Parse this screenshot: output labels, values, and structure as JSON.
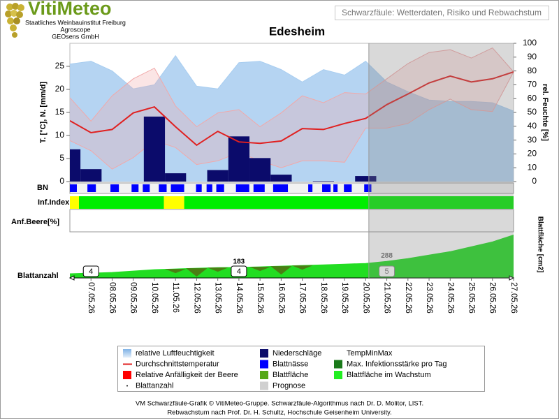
{
  "header": {
    "logo": "VitiMeteo",
    "org_lines": [
      "Staatliches Weinbauinstitut Freiburg",
      "Agroscope",
      "GEOsens GmbH"
    ],
    "subtitle": "Schwarzfäule: Wetterdaten, Risiko und Rebwachstum"
  },
  "chart_data": {
    "type": "weather-risk-combo",
    "title": "Edesheim",
    "categories": [
      null,
      "07.05.26",
      "08.05.26",
      "09.05.26",
      "10.05.26",
      "11.05.26",
      "12.05.26",
      "13.05.26",
      "14.05.26",
      "15.05.26",
      "16.05.26",
      "17.05.26",
      "18.05.26",
      "19.05.26",
      "20.05.26",
      "21.05.26",
      "22.05.26",
      "23.05.26",
      "24.05.26",
      "25.05.26",
      "26.05.26",
      "27.05.26"
    ],
    "ylabel": "T. [°C], N. [mm/d]",
    "y2label": "rel. Feuchte [%]",
    "ylim": [
      0,
      30
    ],
    "yticks": [
      0,
      5,
      10,
      15,
      20,
      25
    ],
    "y2lim": [
      0,
      100
    ],
    "y2ticks": [
      0,
      10,
      20,
      30,
      40,
      50,
      60,
      70,
      80,
      90,
      100
    ],
    "forecast_from": 14.15,
    "forecast_color": "#808080",
    "series": [
      {
        "kind": "area",
        "axis": "y2",
        "color": "#a8cdf0",
        "values": [
          85,
          87,
          80,
          67,
          70,
          91,
          69,
          67,
          86,
          87,
          81,
          72,
          81,
          77,
          87,
          72,
          65,
          59,
          58,
          58,
          57,
          51
        ]
      },
      {
        "kind": "band",
        "color": "#f2a8a8",
        "upper": [
          18.2,
          13.1,
          18.6,
          22.3,
          24.6,
          16.4,
          11.9,
          14.9,
          15.6,
          11.9,
          14.9,
          18.6,
          17.1,
          19.3,
          19.0,
          22.3,
          25.6,
          28.0,
          28.6,
          26.8,
          29.0,
          23.8
        ],
        "lower": [
          8.9,
          6.7,
          2.7,
          5.2,
          8.9,
          7.4,
          3.7,
          4.5,
          6.3,
          4.5,
          3.0,
          4.5,
          4.5,
          4.2,
          11.6,
          11.6,
          12.6,
          15.6,
          17.9,
          15.6,
          15.2,
          23.8
        ]
      },
      {
        "kind": "bar",
        "color": "#0b0b6b",
        "values": [
          7.0,
          2.7,
          0,
          0,
          14.1,
          1.8,
          0,
          2.5,
          9.8,
          5.1,
          1.5,
          0,
          0.1,
          0,
          1.2,
          null,
          null,
          null,
          null,
          null,
          null,
          null
        ]
      },
      {
        "kind": "line",
        "color": "#e02020",
        "values": [
          13.2,
          10.6,
          11.3,
          14.9,
          16.2,
          11.9,
          7.9,
          10.9,
          8.6,
          8.3,
          8.8,
          11.5,
          11.3,
          12.6,
          13.7,
          16.7,
          19.0,
          21.4,
          22.9,
          21.6,
          22.3,
          23.8
        ]
      }
    ],
    "bn": {
      "label": "BN",
      "color": "#0000ff",
      "intervals": [
        [
          0,
          0.33
        ],
        [
          0.83,
          1.23
        ],
        [
          1.92,
          2.32
        ],
        [
          2.92,
          3.25
        ],
        [
          3.45,
          3.78
        ],
        [
          4.21,
          4.58
        ],
        [
          4.78,
          5.41
        ],
        [
          5.97,
          6.24
        ],
        [
          6.47,
          6.74
        ],
        [
          6.93,
          7.3
        ],
        [
          7.86,
          8.49
        ],
        [
          8.69,
          9.22
        ],
        [
          9.62,
          10.32
        ],
        [
          11.28,
          11.48
        ],
        [
          11.94,
          12.34
        ],
        [
          12.47,
          12.67
        ],
        [
          12.97,
          13.34
        ],
        [
          13.93,
          14.27
        ]
      ]
    },
    "inf_index": {
      "label": "Inf.Index",
      "segments": [
        {
          "from": 0,
          "to": 0.43,
          "color": "#ffff00"
        },
        {
          "from": 0.43,
          "to": 4.45,
          "color": "#00ee00"
        },
        {
          "from": 4.45,
          "to": 5.41,
          "color": "#ffff00"
        },
        {
          "from": 5.41,
          "to": 21,
          "color": "#00ee00"
        }
      ]
    },
    "berry": {
      "label": "Anf.Beere[%]"
    },
    "leaf": {
      "label": "Blattanzahl",
      "area_label": "Blattfläche [cm2]",
      "area_lim": [
        0,
        750
      ],
      "area_color": "#22dd22",
      "infection_color": "#4a7f14",
      "area": [
        72,
        84,
        96,
        120,
        144,
        156,
        168,
        180,
        183,
        192,
        204,
        216,
        228,
        240,
        252,
        288,
        336,
        396,
        456,
        540,
        624,
        744
      ],
      "labels_at": [
        8,
        15
      ],
      "infection": [
        0,
        0,
        0,
        0,
        0,
        0.5,
        1,
        0.5,
        0,
        0.5,
        1,
        0.5,
        0,
        0,
        0,
        null,
        null,
        null,
        null,
        null,
        null,
        null
      ],
      "count": [
        null,
        4,
        null,
        null,
        null,
        null,
        null,
        null,
        4,
        null,
        null,
        null,
        null,
        null,
        null,
        5,
        null,
        null,
        null,
        null,
        null,
        null
      ]
    },
    "legend": [
      {
        "name": "relative Luftfeuchtigkeit",
        "color": "#a8cdf0",
        "swatch": "gradient"
      },
      {
        "name": "Niederschläge",
        "color": "#0b0b6b",
        "swatch": "rect"
      },
      {
        "name": "TempMinMax",
        "color": "#ffffff",
        "swatch": "none"
      },
      {
        "name": "Durchschnittstemperatur",
        "color": "#e02020",
        "swatch": "line"
      },
      {
        "name": "Blattnässe",
        "color": "#0000ff",
        "swatch": "rect"
      },
      {
        "name": "Max. Infektionsstärke pro Tag",
        "color": "#1a7a1a",
        "swatch": "rect"
      },
      {
        "name": "Relative Anfälligkeit der Beere",
        "color": "#ff0000",
        "swatch": "rect"
      },
      {
        "name": "Blattfläche",
        "color": "#55a818",
        "swatch": "rect"
      },
      {
        "name": "Blattfläche im Wachstum",
        "color": "#22ee22",
        "swatch": "rect"
      },
      {
        "name": "Blattanzahl",
        "color": "#000000",
        "swatch": "dot"
      },
      {
        "name": "Prognose",
        "color": "#d0d0d0",
        "swatch": "rect"
      }
    ]
  },
  "footer": {
    "lines": [
      "VM Schwarzfäule-Grafik © VitiMeteo-Gruppe. Schwarzfäule-Algorithmus nach Dr. D. Molitor, LIST.",
      "Rebwachstum nach Prof. Dr. H. Schultz, Hochschule Geisenheim University."
    ]
  }
}
